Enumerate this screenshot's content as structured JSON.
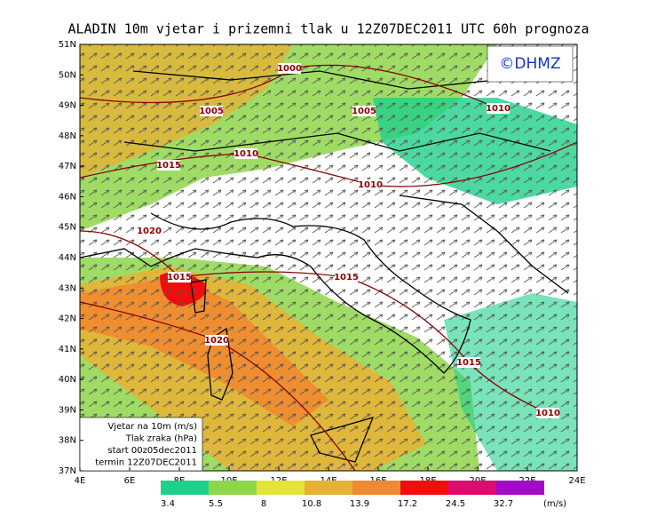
{
  "title": "ALADIN 10m vjetar i prizemni tlak u 12Z07DEC2011 UTC 60h prognoza",
  "logo": "©DHMZ",
  "map": {
    "lat_labels": [
      "51N",
      "50N",
      "49N",
      "48N",
      "47N",
      "46N",
      "45N",
      "44N",
      "43N",
      "42N",
      "41N",
      "40N",
      "39N",
      "38N",
      "37N"
    ],
    "lon_labels": [
      "4E",
      "6E",
      "8E",
      "10E",
      "12E",
      "14E",
      "16E",
      "18E",
      "20E",
      "22E",
      "24E"
    ],
    "isobar_labels": [
      "1000",
      "1005",
      "1005",
      "1010",
      "1010",
      "1015",
      "1010",
      "1020",
      "1015",
      "1015",
      "1020",
      "1015",
      "1010"
    ]
  },
  "info_box": [
    "Vjetar na 10m (m/s)",
    "Tlak zraka (hPa)",
    "start 00z05dec2011",
    "termin 12Z07DEC2011"
  ],
  "colorbar": {
    "labels": [
      3.4,
      5.5,
      8,
      10.8,
      13.9,
      17.2,
      24.5,
      32.7
    ],
    "unit": "(m/s)",
    "colors": [
      "#1fd08a",
      "#8ed64a",
      "#e3e33a",
      "#e6b236",
      "#f08a30",
      "#f20d0d",
      "#de0a6e",
      "#a50ac8"
    ]
  }
}
